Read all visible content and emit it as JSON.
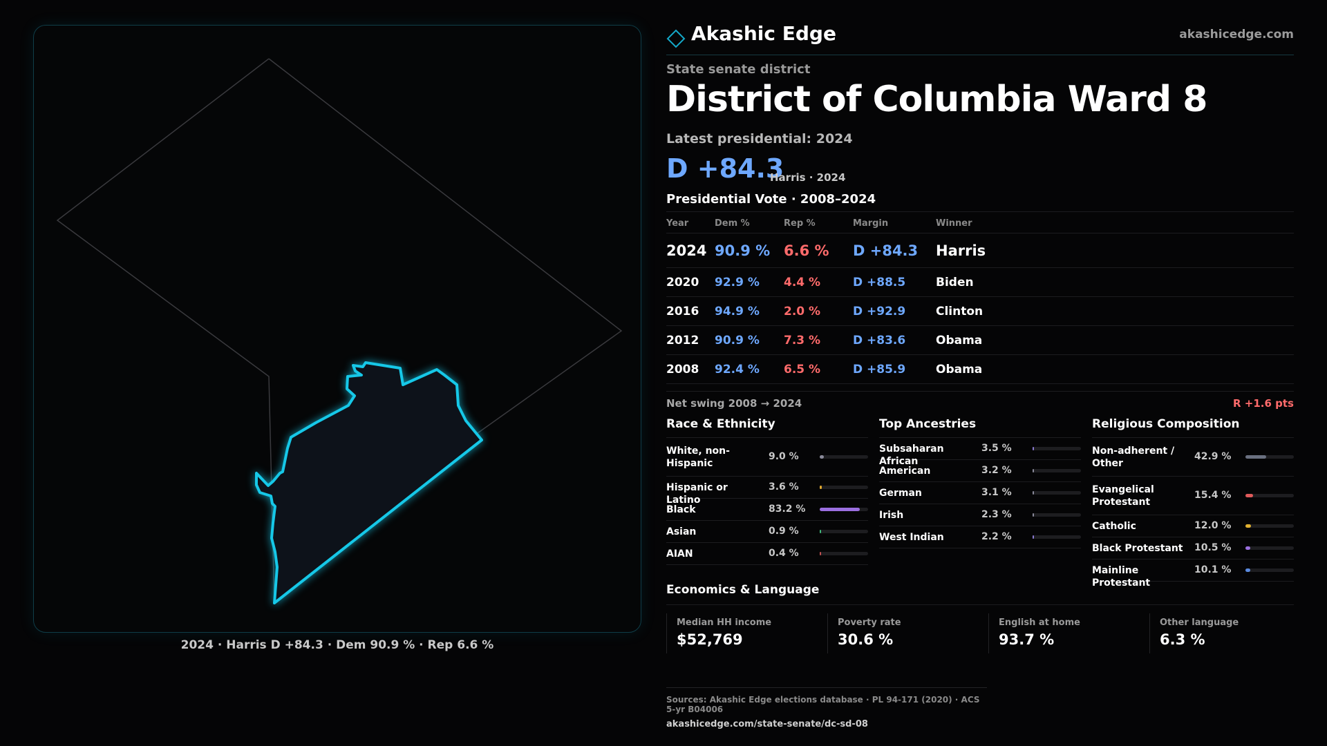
{
  "brand": {
    "name": "Akashic Edge",
    "url": "akashicedge.com",
    "logo_icon": "diamond-outline-icon",
    "accent": "#14a8c8"
  },
  "map": {
    "caption": "2024 · Harris D +84.3 · Dem 90.9 % · Rep 6.6 %",
    "highlight_color": "#16c8e8",
    "fill_color": "#0d121a"
  },
  "header": {
    "kicker": "State senate district",
    "title": "District of Columbia Ward 8",
    "latest": "Latest presidential: 2024",
    "margin": "D +84.3",
    "margin_sub": "Harris · 2024"
  },
  "presidential": {
    "title": "Presidential Vote · 2008–2024",
    "columns": [
      "Year",
      "Dem %",
      "Rep %",
      "Margin",
      "Winner"
    ],
    "rows": [
      {
        "year": "2024",
        "dem": "90.9 %",
        "rep": "6.6 %",
        "margin": "D +84.3",
        "winner": "Harris"
      },
      {
        "year": "2020",
        "dem": "92.9 %",
        "rep": "4.4 %",
        "margin": "D +88.5",
        "winner": "Biden"
      },
      {
        "year": "2016",
        "dem": "94.9 %",
        "rep": "2.0 %",
        "margin": "D +92.9",
        "winner": "Clinton"
      },
      {
        "year": "2012",
        "dem": "90.9 %",
        "rep": "7.3 %",
        "margin": "D +83.6",
        "winner": "Obama"
      },
      {
        "year": "2008",
        "dem": "92.4 %",
        "rep": "6.5 %",
        "margin": "D +85.9",
        "winner": "Obama"
      }
    ],
    "swing_label": "Net swing 2008 → 2024",
    "swing_value": "R +1.6 pts"
  },
  "race": {
    "title": "Race & Ethnicity",
    "rows": [
      {
        "label": "White, non-Hispanic",
        "value": "9.0 %",
        "pct": 9.0,
        "color": "#8a8a9a"
      },
      {
        "label": "Hispanic or Latino",
        "value": "3.6 %",
        "pct": 3.6,
        "color": "#e0a830"
      },
      {
        "label": "Black",
        "value": "83.2 %",
        "pct": 83.2,
        "color": "#9b6fe0"
      },
      {
        "label": "Asian",
        "value": "0.9 %",
        "pct": 0.9,
        "color": "#3fb87a"
      },
      {
        "label": "AIAN",
        "value": "0.4 %",
        "pct": 0.4,
        "color": "#c05050"
      }
    ]
  },
  "ancestry": {
    "title": "Top Ancestries",
    "rows": [
      {
        "label": "Subsaharan African",
        "value": "3.5 %",
        "pct": 3.5,
        "color": "#8a7ad0"
      },
      {
        "label": "American",
        "value": "3.2 %",
        "pct": 3.2,
        "color": "#8a8a9a"
      },
      {
        "label": "German",
        "value": "3.1 %",
        "pct": 3.1,
        "color": "#8a8a9a"
      },
      {
        "label": "Irish",
        "value": "2.3 %",
        "pct": 2.3,
        "color": "#8a8a9a"
      },
      {
        "label": "West Indian",
        "value": "2.2 %",
        "pct": 2.2,
        "color": "#8a7ad0"
      }
    ]
  },
  "religion": {
    "title": "Religious Composition",
    "rows": [
      {
        "label": "Non-adherent / Other",
        "value": "42.9 %",
        "pct": 42.9,
        "color": "#6a7080"
      },
      {
        "label": "Evangelical Protestant",
        "value": "15.4 %",
        "pct": 15.4,
        "color": "#e05a5a"
      },
      {
        "label": "Catholic",
        "value": "12.0 %",
        "pct": 12.0,
        "color": "#e0b030"
      },
      {
        "label": "Black Protestant",
        "value": "10.5 %",
        "pct": 10.5,
        "color": "#9b6fe0"
      },
      {
        "label": "Mainline Protestant",
        "value": "10.1 %",
        "pct": 10.1,
        "color": "#5a8ae0"
      }
    ]
  },
  "economics": {
    "title": "Economics & Language",
    "cards": [
      {
        "label": "Median HH income",
        "value": "$52,769"
      },
      {
        "label": "Poverty rate",
        "value": "30.6 %"
      },
      {
        "label": "English at home",
        "value": "93.7 %"
      },
      {
        "label": "Other language",
        "value": "6.3 %"
      }
    ]
  },
  "sources": {
    "line": "Sources: Akashic Edge elections database · PL 94-171 (2020) · ACS 5-yr B04006",
    "url": "akashicedge.com/state-senate/dc-sd-08"
  }
}
